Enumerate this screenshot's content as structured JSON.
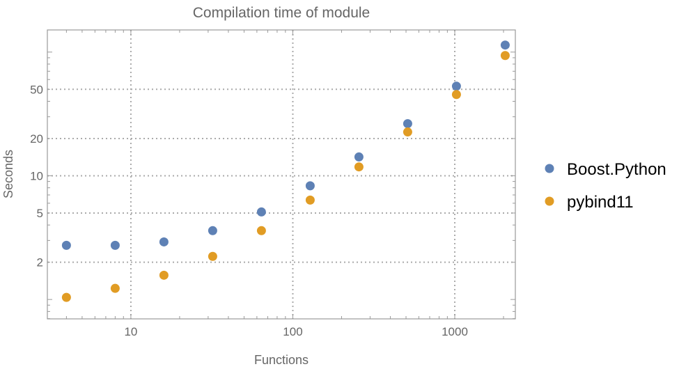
{
  "chart_data": {
    "type": "scatter",
    "title": "Compilation time of module",
    "xlabel": "Functions",
    "ylabel": "Seconds",
    "xscale": "log",
    "yscale": "log",
    "xlim": [
      3.05,
      2366
    ],
    "ylim": [
      0.697,
      151
    ],
    "xticks": [
      10,
      100,
      1000
    ],
    "xtick_labels": [
      "10",
      "100",
      "1000"
    ],
    "yticks": [
      2,
      5,
      10,
      20,
      50
    ],
    "ytick_labels": [
      "2",
      "5",
      "10",
      "20",
      "50"
    ],
    "grid": true,
    "legend_position": "right",
    "x": [
      4,
      8,
      16,
      32,
      64,
      128,
      256,
      512,
      1024,
      2048
    ],
    "series": [
      {
        "name": "Boost.Python",
        "color": "#5E81B5",
        "values": [
          2.74,
          2.74,
          2.92,
          3.6,
          5.1,
          8.3,
          14.2,
          26.4,
          53,
          114
        ]
      },
      {
        "name": "pybind11",
        "color": "#E19C24",
        "values": [
          1.04,
          1.23,
          1.57,
          2.23,
          3.6,
          6.36,
          11.8,
          22.6,
          45.4,
          93.8
        ]
      }
    ]
  }
}
